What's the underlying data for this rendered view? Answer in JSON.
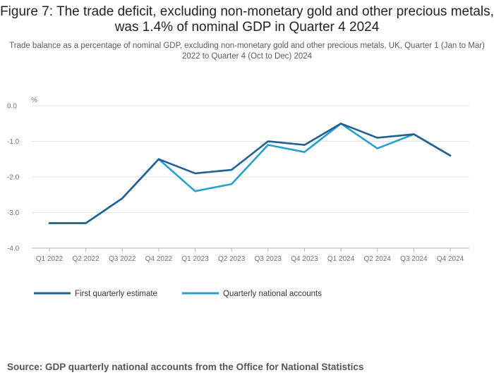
{
  "title": "Figure 7: The trade deficit, excluding non-monetary gold and other precious metals, was 1.4% of nominal GDP in Quarter 4 2024",
  "subtitle": "Trade balance as a percentage of nominal GDP, excluding non-monetary gold and other precious metals, UK, Quarter 1 (Jan to Mar) 2022 to Quarter 4 (Oct to Dec) 2024",
  "source": "Source: GDP quarterly national accounts from the Office for National Statistics",
  "chart_data": {
    "type": "line",
    "title": "Figure 7: The trade deficit, excluding non-monetary gold and other precious metals, was 1.4% of nominal GDP in Quarter 4 2024",
    "subtitle": "Trade balance as a percentage of nominal GDP, excluding non-monetary gold and other precious metals, UK, Quarter 1 (Jan to Mar) 2022 to Quarter 4 (Oct to Dec) 2024",
    "ylabel": "%",
    "xlabel": "",
    "ylim": [
      -4.0,
      0.0
    ],
    "yticks": [
      "0.0",
      "-1.0",
      "-2.0",
      "-3.0",
      "-4.0"
    ],
    "ytick_values": [
      0,
      -1,
      -2,
      -3,
      -4
    ],
    "grid": true,
    "legend_position": "bottom-left",
    "categories": [
      "Q1 2022",
      "Q2 2022",
      "Q3 2022",
      "Q4 2022",
      "Q1 2023",
      "Q2 2023",
      "Q3 2023",
      "Q4 2023",
      "Q1 2024",
      "Q2 2024",
      "Q3 2024",
      "Q4 2024"
    ],
    "series": [
      {
        "name": "First quarterly estimate",
        "color": "#206095",
        "values": [
          -3.3,
          -3.3,
          -2.6,
          -1.5,
          -1.9,
          -1.8,
          -1.0,
          -1.1,
          -0.5,
          -0.9,
          -0.8,
          -1.4
        ]
      },
      {
        "name": "Quarterly national accounts",
        "color": "#27a0cc",
        "values": [
          -3.3,
          -3.3,
          -2.6,
          -1.5,
          -2.4,
          -2.2,
          -1.1,
          -1.3,
          -0.5,
          -1.2,
          -0.8,
          -1.4
        ]
      }
    ]
  }
}
